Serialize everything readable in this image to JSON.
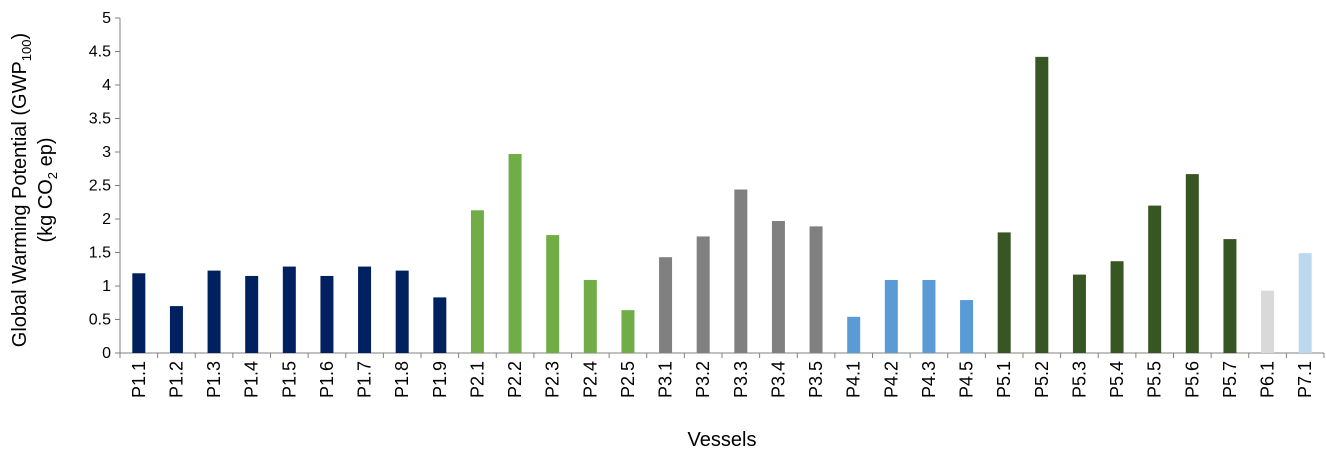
{
  "chart_data": {
    "type": "bar",
    "xlabel": "Vessels",
    "ylabel_line1_prefix": "Global Warming Potential (GWP",
    "ylabel_line1_sub": "100",
    "ylabel_line1_suffix": ")",
    "ylabel_line2_prefix": "(kg CO",
    "ylabel_line2_sub": "2",
    "ylabel_line2_suffix": " ep)",
    "ylim": [
      0,
      5
    ],
    "yticks": [
      "0",
      "0.5",
      "1",
      "1.5",
      "2",
      "2.5",
      "3",
      "3.5",
      "4",
      "4.5",
      "5"
    ],
    "grid": false,
    "categories": [
      "P1.1",
      "P1.2",
      "P1.3",
      "P1.4",
      "P1.5",
      "P1.6",
      "P1.7",
      "P1.8",
      "P1.9",
      "P2.1",
      "P2.2",
      "P2.3",
      "P2.4",
      "P2.5",
      "P3.1",
      "P3.2",
      "P3.3",
      "P3.4",
      "P3.5",
      "P4.1",
      "P4.2",
      "P4.3",
      "P4.5",
      "P5.1",
      "P5.2",
      "P5.3",
      "P5.4",
      "P5.5",
      "P5.6",
      "P5.7",
      "P6.1",
      "P7.1"
    ],
    "values": [
      1.19,
      0.7,
      1.23,
      1.15,
      1.29,
      1.15,
      1.29,
      1.23,
      0.83,
      2.13,
      2.97,
      1.76,
      1.09,
      0.64,
      1.43,
      1.74,
      2.44,
      1.97,
      1.89,
      0.54,
      1.09,
      1.09,
      0.79,
      1.8,
      4.42,
      1.17,
      1.37,
      2.2,
      2.67,
      1.7,
      0.93,
      1.49
    ],
    "colors": [
      "#002060",
      "#002060",
      "#002060",
      "#002060",
      "#002060",
      "#002060",
      "#002060",
      "#002060",
      "#002060",
      "#70ad47",
      "#70ad47",
      "#70ad47",
      "#70ad47",
      "#70ad47",
      "#808080",
      "#808080",
      "#808080",
      "#808080",
      "#808080",
      "#5b9bd5",
      "#5b9bd5",
      "#5b9bd5",
      "#5b9bd5",
      "#375623",
      "#375623",
      "#375623",
      "#375623",
      "#375623",
      "#375623",
      "#375623",
      "#d9d9d9",
      "#bdd7ee"
    ]
  }
}
